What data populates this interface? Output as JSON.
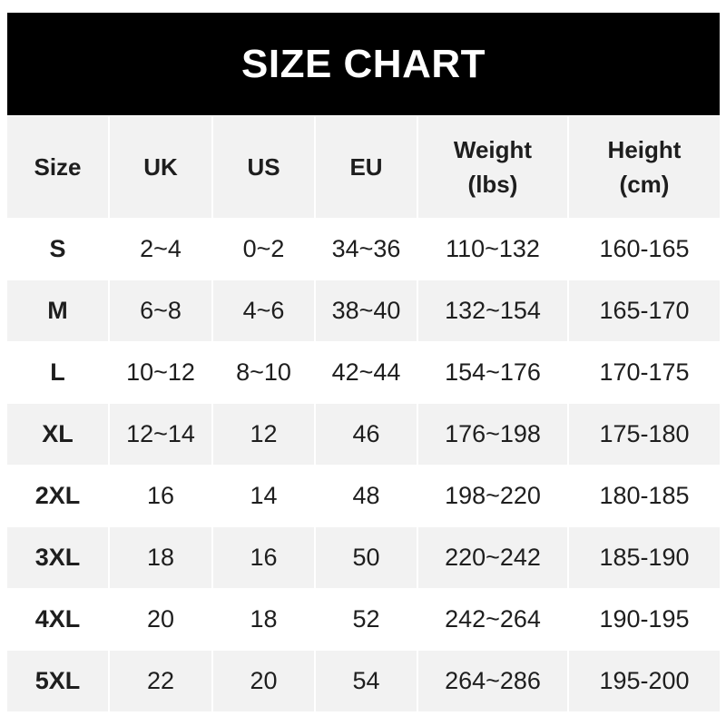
{
  "title": "SIZE CHART",
  "headers": [
    "Size",
    "UK",
    "US",
    "EU",
    "Weight\n(lbs)",
    "Height\n(cm)"
  ],
  "header_lines": {
    "weight": [
      "Weight",
      "(lbs)"
    ],
    "height": [
      "Height",
      "(cm)"
    ]
  },
  "rows": [
    [
      "S",
      "2~4",
      "0~2",
      "34~36",
      "110~132",
      "160-165"
    ],
    [
      "M",
      "6~8",
      "4~6",
      "38~40",
      "132~154",
      "165-170"
    ],
    [
      "L",
      "10~12",
      "8~10",
      "42~44",
      "154~176",
      "170-175"
    ],
    [
      "XL",
      "12~14",
      "12",
      "46",
      "176~198",
      "175-180"
    ],
    [
      "2XL",
      "16",
      "14",
      "48",
      "198~220",
      "180-185"
    ],
    [
      "3XL",
      "18",
      "16",
      "50",
      "220~242",
      "185-190"
    ],
    [
      "4XL",
      "20",
      "18",
      "52",
      "242~264",
      "190-195"
    ],
    [
      "5XL",
      "22",
      "20",
      "54",
      "264~286",
      "195-200"
    ]
  ],
  "colors": {
    "header_bg": "#000000",
    "title": "#ffffff",
    "stripe": "#f2f2f2",
    "text": "#1e1e1e"
  }
}
